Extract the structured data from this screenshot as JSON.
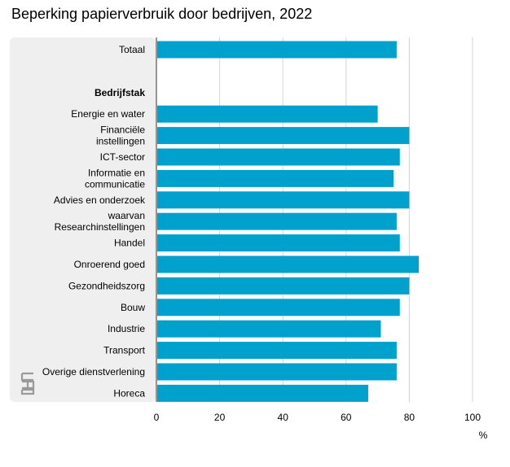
{
  "chart_data": {
    "type": "bar",
    "orientation": "horizontal",
    "title": "Beperking papierverbruik door bedrijven, 2022",
    "xlabel": "%",
    "ylabel": "",
    "xlim": [
      0,
      100
    ],
    "ticks": [
      0,
      20,
      40,
      60,
      80,
      100
    ],
    "tick_labels": [
      "0",
      "20",
      "40",
      "60",
      "80",
      "100"
    ],
    "grid": true,
    "bar_color": "#00a1cd",
    "rows": [
      {
        "label": "Totaal",
        "value": 76
      },
      {
        "label": "",
        "value": null
      },
      {
        "label": "Bedrijfstak",
        "value": null,
        "heading": true
      },
      {
        "label": "Energie en water",
        "value": 70
      },
      {
        "label": "Financiële\ninstellingen",
        "value": 80
      },
      {
        "label": "ICT-sector",
        "value": 77
      },
      {
        "label": "Informatie en\ncommunicatie",
        "value": 75
      },
      {
        "label": "Advies en onderzoek",
        "value": 80
      },
      {
        "label": "waarvan\nResearchinstellingen",
        "value": 76
      },
      {
        "label": "Handel",
        "value": 77
      },
      {
        "label": "Onroerend goed",
        "value": 83
      },
      {
        "label": "Gezondheidszorg",
        "value": 80
      },
      {
        "label": "Bouw",
        "value": 77
      },
      {
        "label": "Industrie",
        "value": 71
      },
      {
        "label": "Transport",
        "value": 76
      },
      {
        "label": "Overige dienstverlening",
        "value": 76
      },
      {
        "label": "Horeca",
        "value": 67
      }
    ]
  },
  "colors": {
    "label_panel": "#efefef",
    "grid": "#d4d4d4",
    "axis": "#333333",
    "logo": "#9a9a9a"
  },
  "logo_name": "cbs-logo-icon"
}
